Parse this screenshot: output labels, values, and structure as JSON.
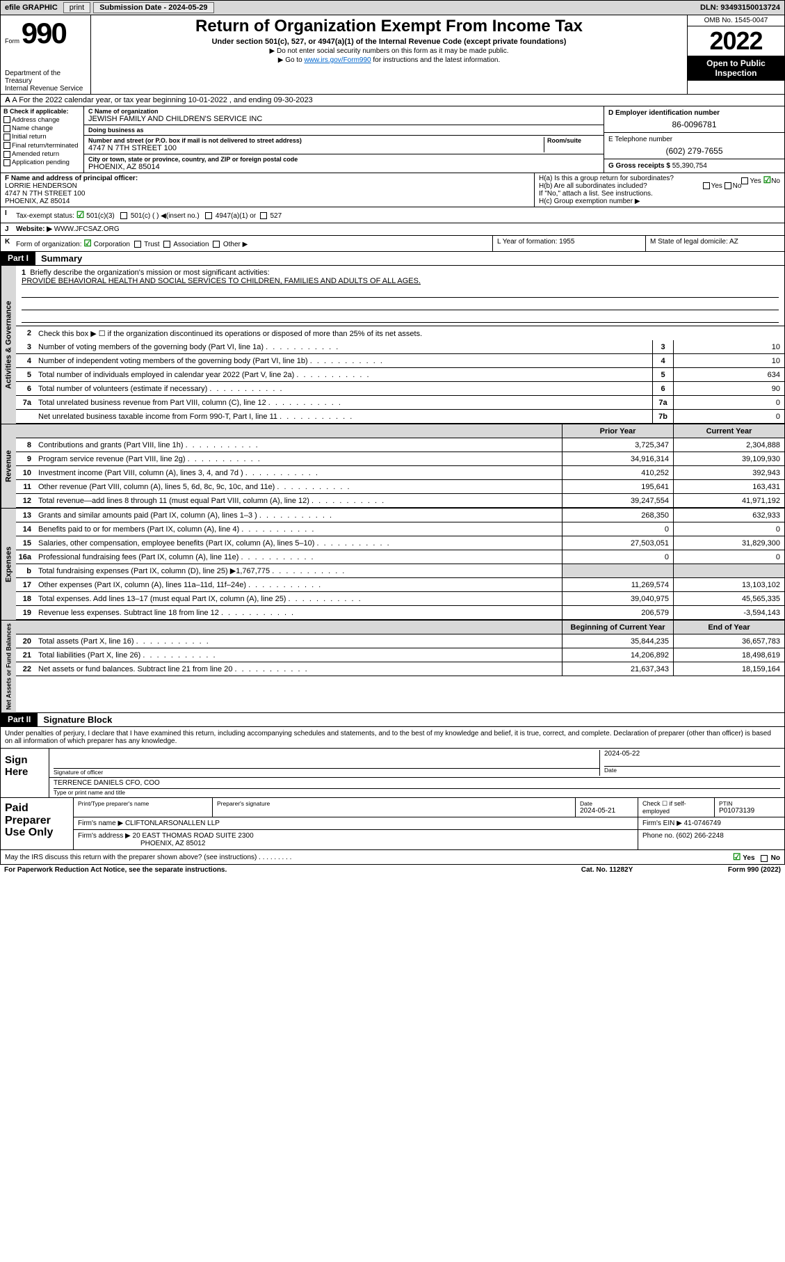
{
  "colors": {
    "shade": "#d8d8d8",
    "black": "#000000",
    "link": "#0066cc",
    "check_green": "#0a8a0a"
  },
  "topbar": {
    "efile": "efile GRAPHIC",
    "print": "print",
    "sub_date_label": "Submission Date - 2024-05-29",
    "dln": "DLN: 93493150013724"
  },
  "header": {
    "form_label": "Form",
    "form_num": "990",
    "dept": "Department of the Treasury",
    "irs": "Internal Revenue Service",
    "title": "Return of Organization Exempt From Income Tax",
    "subtitle": "Under section 501(c), 527, or 4947(a)(1) of the Internal Revenue Code (except private foundations)",
    "note1": "▶ Do not enter social security numbers on this form as it may be made public.",
    "note2_pre": "▶ Go to ",
    "note2_link": "www.irs.gov/Form990",
    "note2_post": " for instructions and the latest information.",
    "omb": "OMB No. 1545-0047",
    "year": "2022",
    "open_public": "Open to Public Inspection"
  },
  "row_a": "A For the 2022 calendar year, or tax year beginning 10-01-2022   , and ending 09-30-2023",
  "col_b": {
    "header": "B Check if applicable:",
    "items": [
      "Address change",
      "Name change",
      "Initial return",
      "Final return/terminated",
      "Amended return",
      "Application pending"
    ]
  },
  "col_c": {
    "name_lbl": "C Name of organization",
    "name": "JEWISH FAMILY AND CHILDREN'S SERVICE INC",
    "dba_lbl": "Doing business as",
    "dba": "",
    "addr_lbl": "Number and street (or P.O. box if mail is not delivered to street address)",
    "room_lbl": "Room/suite",
    "addr": "4747 N 7TH STREET 100",
    "city_lbl": "City or town, state or province, country, and ZIP or foreign postal code",
    "city": "PHOENIX, AZ  85014"
  },
  "col_d": {
    "ein_lbl": "D Employer identification number",
    "ein": "86-0096781",
    "phone_lbl": "E Telephone number",
    "phone": "(602) 279-7655",
    "gross_lbl": "G Gross receipts $",
    "gross": "55,390,754"
  },
  "row_f": {
    "lbl": "F Name and address of principal officer:",
    "name": "LORRIE HENDERSON",
    "addr1": "4747 N 7TH STREET 100",
    "addr2": "PHOENIX, AZ  85014"
  },
  "row_h": {
    "ha": "H(a)  Is this a group return for subordinates?",
    "ha_ans": "No",
    "hb": "H(b)  Are all subordinates included?",
    "hb_note": "If \"No,\" attach a list. See instructions.",
    "hc": "H(c)  Group exemption number ▶"
  },
  "row_i": {
    "label": "I",
    "text": "Tax-exempt status:",
    "opt501c3": "501(c)(3)",
    "opt501c": "501(c) (  ) ◀(insert no.)",
    "opt4947": "4947(a)(1) or",
    "opt527": "527"
  },
  "row_j": {
    "label": "J",
    "text": "Website: ▶",
    "val": "WWW.JFCSAZ.ORG"
  },
  "row_k": {
    "label": "K",
    "text": "Form of organization:",
    "corp": "Corporation",
    "trust": "Trust",
    "assoc": "Association",
    "other": "Other ▶"
  },
  "row_l": {
    "text": "L Year of formation: 1955"
  },
  "row_m": {
    "text": "M State of legal domicile: AZ"
  },
  "part1": {
    "label": "Part I",
    "title": "Summary",
    "line1_lbl": "1",
    "line1": "Briefly describe the organization's mission or most significant activities:",
    "mission": "PROVIDE BEHAVIORAL HEALTH AND SOCIAL SERVICES TO CHILDREN, FAMILIES AND ADULTS OF ALL AGES.",
    "line2_lbl": "2",
    "line2": "Check this box ▶ ☐  if the organization discontinued its operations or disposed of more than 25% of its net assets.",
    "tabs": {
      "gov": "Activities & Governance",
      "rev": "Revenue",
      "exp": "Expenses",
      "net": "Net Assets or Fund Balances"
    },
    "col_prior": "Prior Year",
    "col_current": "Current Year",
    "col_beg": "Beginning of Current Year",
    "col_end": "End of Year",
    "gov_lines": [
      {
        "n": "3",
        "d": "Number of voting members of the governing body (Part VI, line 1a)",
        "k": "3",
        "v": "10"
      },
      {
        "n": "4",
        "d": "Number of independent voting members of the governing body (Part VI, line 1b)",
        "k": "4",
        "v": "10"
      },
      {
        "n": "5",
        "d": "Total number of individuals employed in calendar year 2022 (Part V, line 2a)",
        "k": "5",
        "v": "634"
      },
      {
        "n": "6",
        "d": "Total number of volunteers (estimate if necessary)",
        "k": "6",
        "v": "90"
      },
      {
        "n": "7a",
        "d": "Total unrelated business revenue from Part VIII, column (C), line 12",
        "k": "7a",
        "v": "0"
      },
      {
        "n": "",
        "d": "Net unrelated business taxable income from Form 990-T, Part I, line 11",
        "k": "7b",
        "v": "0"
      }
    ],
    "rev_lines": [
      {
        "n": "8",
        "d": "Contributions and grants (Part VIII, line 1h)",
        "p": "3,725,347",
        "c": "2,304,888"
      },
      {
        "n": "9",
        "d": "Program service revenue (Part VIII, line 2g)",
        "p": "34,916,314",
        "c": "39,109,930"
      },
      {
        "n": "10",
        "d": "Investment income (Part VIII, column (A), lines 3, 4, and 7d )",
        "p": "410,252",
        "c": "392,943"
      },
      {
        "n": "11",
        "d": "Other revenue (Part VIII, column (A), lines 5, 6d, 8c, 9c, 10c, and 11e)",
        "p": "195,641",
        "c": "163,431"
      },
      {
        "n": "12",
        "d": "Total revenue—add lines 8 through 11 (must equal Part VIII, column (A), line 12)",
        "p": "39,247,554",
        "c": "41,971,192"
      }
    ],
    "exp_lines": [
      {
        "n": "13",
        "d": "Grants and similar amounts paid (Part IX, column (A), lines 1–3 )",
        "p": "268,350",
        "c": "632,933"
      },
      {
        "n": "14",
        "d": "Benefits paid to or for members (Part IX, column (A), line 4)",
        "p": "0",
        "c": "0"
      },
      {
        "n": "15",
        "d": "Salaries, other compensation, employee benefits (Part IX, column (A), lines 5–10)",
        "p": "27,503,051",
        "c": "31,829,300"
      },
      {
        "n": "16a",
        "d": "Professional fundraising fees (Part IX, column (A), line 11e)",
        "p": "0",
        "c": "0"
      },
      {
        "n": "b",
        "d": "Total fundraising expenses (Part IX, column (D), line 25) ▶1,767,775",
        "p": "",
        "c": "",
        "shade": true
      },
      {
        "n": "17",
        "d": "Other expenses (Part IX, column (A), lines 11a–11d, 11f–24e)",
        "p": "11,269,574",
        "c": "13,103,102"
      },
      {
        "n": "18",
        "d": "Total expenses. Add lines 13–17 (must equal Part IX, column (A), line 25)",
        "p": "39,040,975",
        "c": "45,565,335"
      },
      {
        "n": "19",
        "d": "Revenue less expenses. Subtract line 18 from line 12",
        "p": "206,579",
        "c": "-3,594,143"
      }
    ],
    "net_lines": [
      {
        "n": "20",
        "d": "Total assets (Part X, line 16)",
        "p": "35,844,235",
        "c": "36,657,783"
      },
      {
        "n": "21",
        "d": "Total liabilities (Part X, line 26)",
        "p": "14,206,892",
        "c": "18,498,619"
      },
      {
        "n": "22",
        "d": "Net assets or fund balances. Subtract line 21 from line 20",
        "p": "21,637,343",
        "c": "18,159,164"
      }
    ]
  },
  "part2": {
    "label": "Part II",
    "title": "Signature Block",
    "declaration": "Under penalties of perjury, I declare that I have examined this return, including accompanying schedules and statements, and to the best of my knowledge and belief, it is true, correct, and complete. Declaration of preparer (other than officer) is based on all information of which preparer has any knowledge.",
    "sign_here": "Sign Here",
    "sig_officer_lbl": "Signature of officer",
    "sig_date": "2024-05-22",
    "date_lbl": "Date",
    "officer_name": "TERRENCE DANIELS CFO, COO",
    "type_name_lbl": "Type or print name and title",
    "paid_prep": "Paid Preparer Use Only",
    "prep_name_lbl": "Print/Type preparer's name",
    "prep_sig_lbl": "Preparer's signature",
    "prep_date_lbl": "Date",
    "prep_date": "2024-05-21",
    "self_emp": "Check ☐ if self-employed",
    "ptin_lbl": "PTIN",
    "ptin": "P01073139",
    "firm_name_lbl": "Firm's name    ▶",
    "firm_name": "CLIFTONLARSONALLEN LLP",
    "firm_ein_lbl": "Firm's EIN ▶",
    "firm_ein": "41-0746749",
    "firm_addr_lbl": "Firm's address ▶",
    "firm_addr1": "20 EAST THOMAS ROAD SUITE 2300",
    "firm_addr2": "PHOENIX, AZ  85012",
    "firm_phone_lbl": "Phone no.",
    "firm_phone": "(602) 266-2248"
  },
  "footer": {
    "discuss": "May the IRS discuss this return with the preparer shown above? (see instructions)",
    "yes": "Yes",
    "no": "No",
    "paperwork": "For Paperwork Reduction Act Notice, see the separate instructions.",
    "catno": "Cat. No. 11282Y",
    "formver": "Form 990 (2022)"
  }
}
